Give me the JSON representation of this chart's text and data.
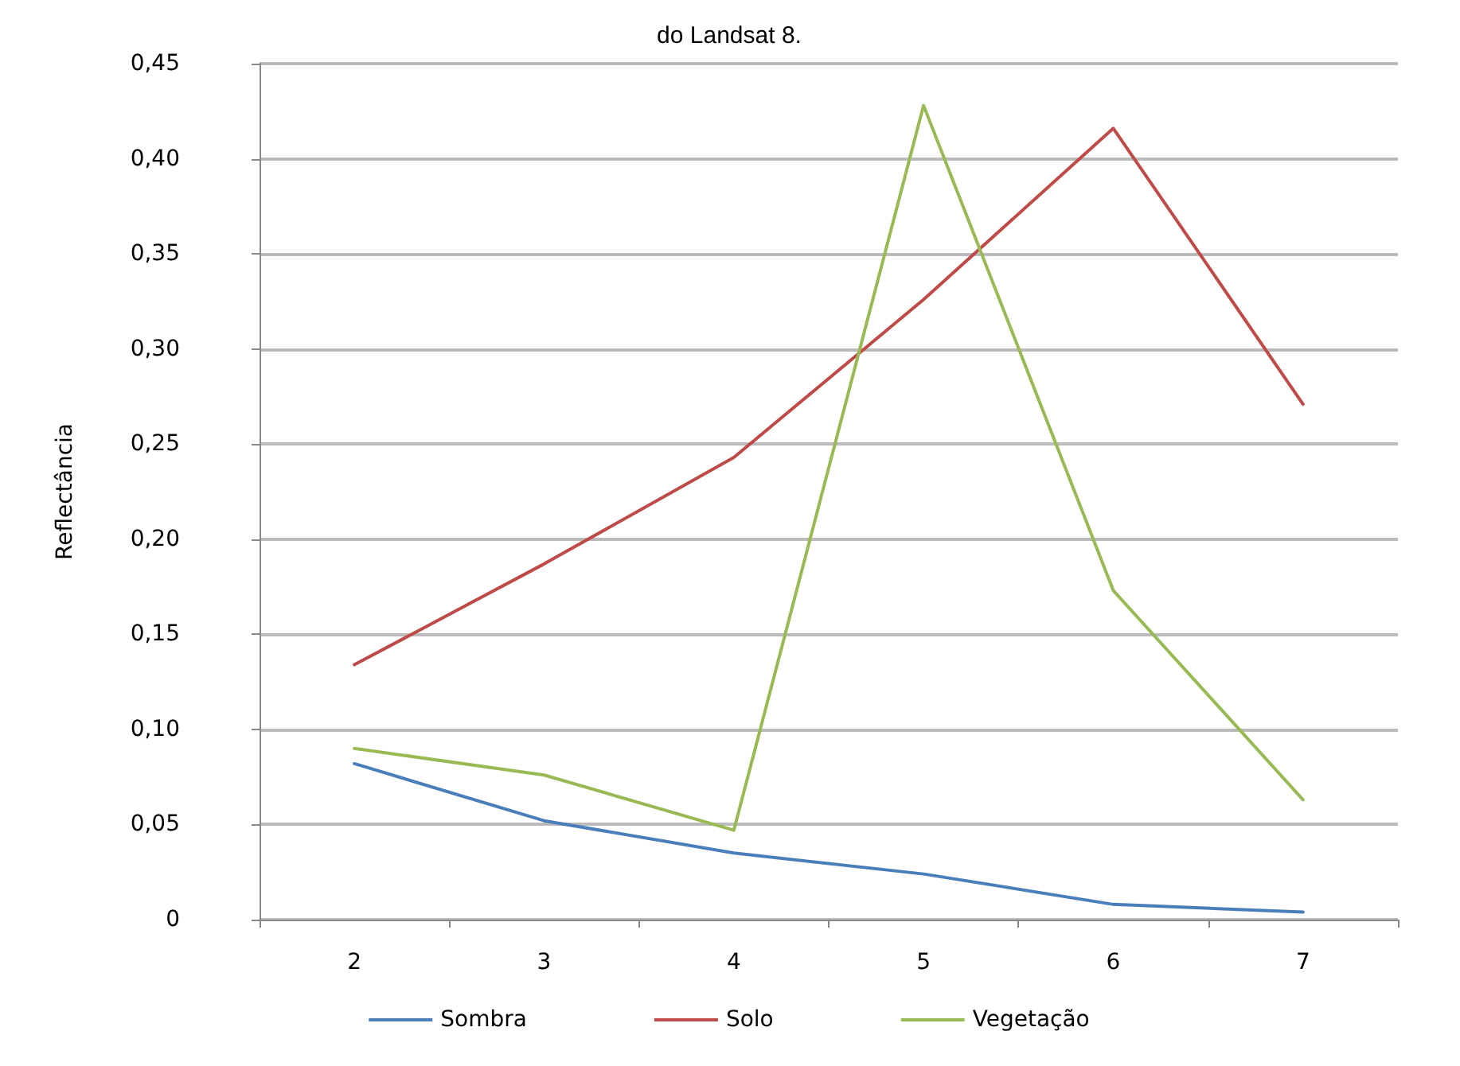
{
  "chart_data": {
    "type": "line",
    "title": "do Landsat 8.",
    "ylabel": "Reflectância",
    "categories": [
      "2",
      "3",
      "4",
      "5",
      "6",
      "7"
    ],
    "series": [
      {
        "name": "Sombra",
        "color": "#4a7ebb",
        "values": [
          0.082,
          0.052,
          0.035,
          0.024,
          0.008,
          0.004
        ]
      },
      {
        "name": "Solo",
        "color": "#be4b48",
        "values": [
          0.134,
          0.187,
          0.243,
          0.326,
          0.416,
          0.271
        ]
      },
      {
        "name": "Vegetação",
        "color": "#98b954",
        "values": [
          0.09,
          0.076,
          0.047,
          0.428,
          0.173,
          0.063
        ]
      }
    ],
    "ylim": [
      0,
      0.45
    ],
    "yticks": [
      {
        "value": 0,
        "label": "0"
      },
      {
        "value": 0.05,
        "label": "0,05"
      },
      {
        "value": 0.1,
        "label": "0,10"
      },
      {
        "value": 0.15,
        "label": "0,15"
      },
      {
        "value": 0.2,
        "label": "0,20"
      },
      {
        "value": 0.25,
        "label": "0,25"
      },
      {
        "value": 0.3,
        "label": "0,30"
      },
      {
        "value": 0.35,
        "label": "0,35"
      },
      {
        "value": 0.4,
        "label": "0,40"
      },
      {
        "value": 0.45,
        "label": "0,45"
      }
    ],
    "grid": "y",
    "legend": "bottom",
    "marker": "none",
    "line_style": "solid"
  }
}
